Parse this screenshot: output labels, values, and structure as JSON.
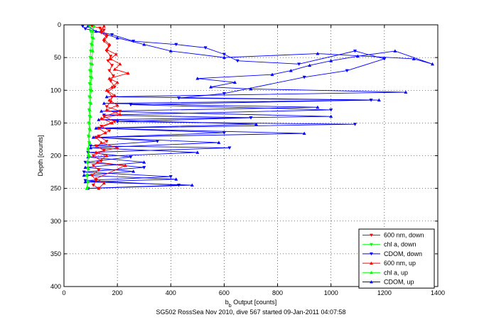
{
  "chart_data": {
    "type": "scatter",
    "title": "",
    "caption": "SG502 RossSea Nov 2010, dive 567 started 09-Jan-2011 04:07:58",
    "xlabel": {
      "main": "b",
      "sub": "b",
      "rest": " Output [counts]"
    },
    "ylabel": "Depth [counts]",
    "xlim": [
      0,
      1400
    ],
    "ylim": [
      0,
      400
    ],
    "y_reversed": true,
    "grid": true,
    "legend_position": "bottom-right",
    "xticks": [
      0,
      200,
      400,
      600,
      800,
      1000,
      1200,
      1400
    ],
    "yticks": [
      0,
      50,
      100,
      150,
      200,
      250,
      300,
      350,
      400
    ],
    "colors": {
      "red": "#ff0000",
      "green": "#00ff00",
      "blue": "#0000ff"
    },
    "series": [
      {
        "name": "600 nm, down",
        "color": "#ff0000",
        "marker": "triangle-down",
        "line": true,
        "points": [
          [
            105,
            2
          ],
          [
            135,
            5
          ],
          [
            150,
            8
          ],
          [
            140,
            12
          ],
          [
            160,
            18
          ],
          [
            150,
            25
          ],
          [
            170,
            32
          ],
          [
            160,
            40
          ],
          [
            175,
            48
          ],
          [
            165,
            55
          ],
          [
            180,
            62
          ],
          [
            170,
            70
          ],
          [
            185,
            78
          ],
          [
            175,
            86
          ],
          [
            190,
            95
          ],
          [
            165,
            102
          ],
          [
            180,
            110
          ],
          [
            175,
            118
          ],
          [
            160,
            125
          ],
          [
            210,
            132
          ],
          [
            150,
            140
          ],
          [
            190,
            148
          ],
          [
            140,
            155
          ],
          [
            170,
            162
          ],
          [
            130,
            170
          ],
          [
            160,
            178
          ],
          [
            120,
            185
          ],
          [
            150,
            192
          ],
          [
            110,
            200
          ],
          [
            140,
            208
          ],
          [
            110,
            215
          ],
          [
            130,
            222
          ],
          [
            105,
            230
          ],
          [
            120,
            238
          ],
          [
            110,
            245
          ],
          [
            130,
            250
          ]
        ]
      },
      {
        "name": "chl a, down",
        "color": "#00ff00",
        "marker": "triangle-down",
        "line": true,
        "points": [
          [
            95,
            2
          ],
          [
            100,
            10
          ],
          [
            105,
            20
          ],
          [
            102,
            30
          ],
          [
            100,
            40
          ],
          [
            98,
            50
          ],
          [
            100,
            60
          ],
          [
            97,
            70
          ],
          [
            99,
            80
          ],
          [
            96,
            90
          ],
          [
            98,
            100
          ],
          [
            95,
            110
          ],
          [
            97,
            120
          ],
          [
            94,
            130
          ],
          [
            96,
            140
          ],
          [
            93,
            150
          ],
          [
            95,
            160
          ],
          [
            92,
            170
          ],
          [
            94,
            180
          ],
          [
            90,
            190
          ],
          [
            92,
            200
          ],
          [
            88,
            210
          ],
          [
            90,
            220
          ],
          [
            87,
            230
          ],
          [
            89,
            240
          ],
          [
            88,
            250
          ]
        ]
      },
      {
        "name": "CDOM, down",
        "color": "#0000ff",
        "marker": "triangle-down",
        "line": true,
        "points": [
          [
            70,
            2
          ],
          [
            80,
            6
          ],
          [
            180,
            15
          ],
          [
            260,
            25
          ],
          [
            420,
            30
          ],
          [
            530,
            35
          ],
          [
            600,
            45
          ],
          [
            650,
            55
          ],
          [
            880,
            60
          ],
          [
            1090,
            40
          ],
          [
            1200,
            52
          ],
          [
            1060,
            70
          ],
          [
            900,
            80
          ],
          [
            600,
            105
          ],
          [
            430,
            112
          ],
          [
            1150,
            115
          ],
          [
            250,
            122
          ],
          [
            1000,
            130
          ],
          [
            150,
            138
          ],
          [
            700,
            142
          ],
          [
            200,
            148
          ],
          [
            1090,
            152
          ],
          [
            130,
            158
          ],
          [
            600,
            165
          ],
          [
            120,
            172
          ],
          [
            350,
            178
          ],
          [
            100,
            185
          ],
          [
            620,
            188
          ],
          [
            90,
            195
          ],
          [
            250,
            202
          ],
          [
            80,
            210
          ],
          [
            300,
            218
          ],
          [
            75,
            225
          ],
          [
            400,
            232
          ],
          [
            80,
            238
          ],
          [
            430,
            245
          ],
          [
            90,
            250
          ]
        ]
      },
      {
        "name": "600 nm, up",
        "color": "#ff0000",
        "marker": "triangle-up",
        "line": true,
        "points": [
          [
            130,
            250
          ],
          [
            150,
            242
          ],
          [
            120,
            235
          ],
          [
            230,
            215
          ],
          [
            125,
            210
          ],
          [
            160,
            200
          ],
          [
            120,
            195
          ],
          [
            200,
            188
          ],
          [
            140,
            180
          ],
          [
            120,
            172
          ],
          [
            155,
            165
          ],
          [
            130,
            158
          ],
          [
            180,
            150
          ],
          [
            140,
            143
          ],
          [
            210,
            137
          ],
          [
            160,
            130
          ],
          [
            200,
            123
          ],
          [
            170,
            115
          ],
          [
            190,
            108
          ],
          [
            160,
            100
          ],
          [
            180,
            95
          ],
          [
            200,
            88
          ],
          [
            170,
            82
          ],
          [
            240,
            74
          ],
          [
            190,
            68
          ],
          [
            210,
            60
          ],
          [
            175,
            52
          ],
          [
            195,
            45
          ],
          [
            160,
            38
          ],
          [
            170,
            30
          ],
          [
            150,
            22
          ],
          [
            160,
            15
          ],
          [
            140,
            8
          ],
          [
            150,
            2
          ]
        ]
      },
      {
        "name": "chl a, up",
        "color": "#00ff00",
        "marker": "triangle-up",
        "line": true,
        "points": [
          [
            85,
            250
          ],
          [
            90,
            240
          ],
          [
            86,
            230
          ],
          [
            92,
            220
          ],
          [
            88,
            210
          ],
          [
            94,
            200
          ],
          [
            90,
            190
          ],
          [
            96,
            180
          ],
          [
            93,
            170
          ],
          [
            98,
            160
          ],
          [
            95,
            150
          ],
          [
            99,
            140
          ],
          [
            97,
            130
          ],
          [
            101,
            120
          ],
          [
            99,
            110
          ],
          [
            103,
            100
          ],
          [
            100,
            90
          ],
          [
            104,
            80
          ],
          [
            102,
            70
          ],
          [
            106,
            60
          ],
          [
            104,
            50
          ],
          [
            108,
            40
          ],
          [
            106,
            30
          ],
          [
            110,
            20
          ],
          [
            108,
            10
          ],
          [
            112,
            2
          ]
        ]
      },
      {
        "name": "CDOM, up",
        "color": "#0000ff",
        "marker": "triangle-up",
        "line": true,
        "points": [
          [
            90,
            250
          ],
          [
            480,
            245
          ],
          [
            80,
            240
          ],
          [
            420,
            236
          ],
          [
            75,
            230
          ],
          [
            260,
            224
          ],
          [
            80,
            218
          ],
          [
            300,
            210
          ],
          [
            90,
            202
          ],
          [
            500,
            195
          ],
          [
            100,
            188
          ],
          [
            580,
            180
          ],
          [
            110,
            172
          ],
          [
            900,
            166
          ],
          [
            120,
            158
          ],
          [
            720,
            152
          ],
          [
            130,
            145
          ],
          [
            1000,
            140
          ],
          [
            140,
            132
          ],
          [
            950,
            126
          ],
          [
            150,
            120
          ],
          [
            1180,
            115
          ],
          [
            160,
            110
          ],
          [
            1280,
            103
          ],
          [
            700,
            98
          ],
          [
            550,
            95
          ],
          [
            640,
            88
          ],
          [
            500,
            82
          ],
          [
            780,
            76
          ],
          [
            850,
            70
          ],
          [
            920,
            62
          ],
          [
            1000,
            55
          ],
          [
            1100,
            48
          ],
          [
            1240,
            40
          ],
          [
            1380,
            60
          ],
          [
            1310,
            52
          ],
          [
            950,
            44
          ],
          [
            600,
            50
          ],
          [
            400,
            40
          ],
          [
            300,
            30
          ],
          [
            200,
            20
          ],
          [
            120,
            10
          ],
          [
            90,
            2
          ]
        ]
      }
    ]
  }
}
